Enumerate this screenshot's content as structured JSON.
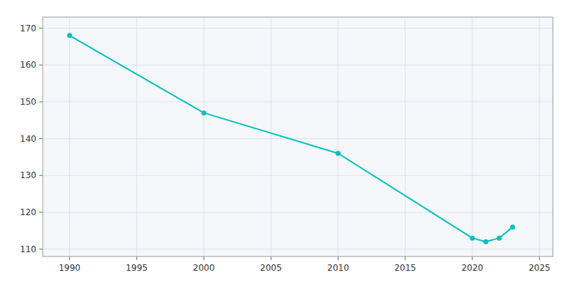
{
  "chart_data": {
    "type": "line",
    "x": [
      1990,
      2000,
      2010,
      2020,
      2021,
      2022,
      2023
    ],
    "values": [
      168,
      147,
      136,
      113,
      112,
      113,
      116
    ],
    "color": "#00BFBF",
    "marker": "circle",
    "xlim": [
      1988,
      2026
    ],
    "ylim": [
      108,
      173
    ],
    "xticks": [
      1990,
      1995,
      2000,
      2005,
      2010,
      2015,
      2020,
      2025
    ],
    "yticks": [
      110,
      120,
      130,
      140,
      150,
      160,
      170
    ],
    "grid": true
  }
}
